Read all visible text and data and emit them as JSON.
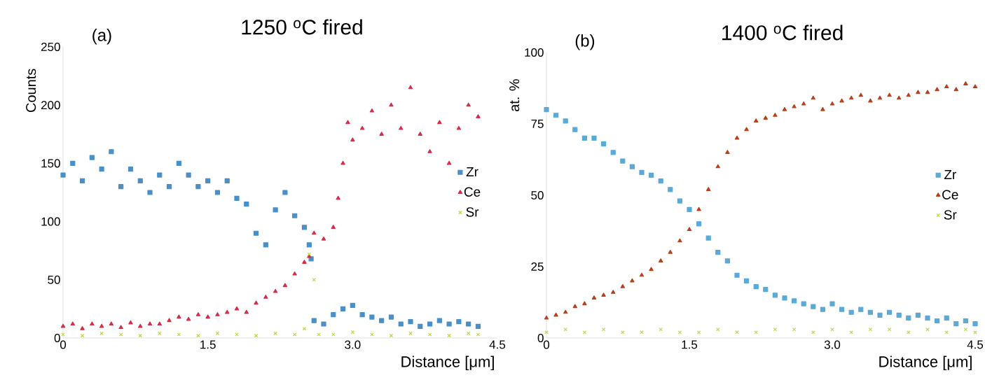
{
  "chart_data": [
    {
      "type": "scatter",
      "title": "1250 $^{o}$C fired",
      "xlabel": "Distance [μm]",
      "ylabel": "Counts",
      "annotations": [
        "(a)"
      ],
      "xlim": [
        0,
        4.5
      ],
      "ylim": [
        0,
        250
      ],
      "xticks": [
        0,
        1.5,
        {
          "value": 3,
          "label": "3.0"
        },
        4.5
      ],
      "yticks": [
        0,
        50,
        100,
        150,
        200,
        250
      ],
      "legend": "right",
      "grid": false,
      "series": [
        {
          "name": "Zr",
          "color": "#4a90c8",
          "marker": "square",
          "x": [
            0,
            0.1,
            0.2,
            0.3,
            0.4,
            0.5,
            0.6,
            0.7,
            0.8,
            0.9,
            1.0,
            1.1,
            1.2,
            1.3,
            1.4,
            1.5,
            1.6,
            1.7,
            1.8,
            1.9,
            2.0,
            2.1,
            2.2,
            2.3,
            2.4,
            2.5,
            2.55,
            2.57,
            2.6,
            2.7,
            2.8,
            2.9,
            3.0,
            3.1,
            3.2,
            3.3,
            3.4,
            3.5,
            3.6,
            3.7,
            3.8,
            3.9,
            4.0,
            4.1,
            4.2,
            4.3
          ],
          "values": [
            140,
            150,
            135,
            155,
            145,
            160,
            130,
            145,
            135,
            125,
            140,
            130,
            150,
            140,
            130,
            135,
            125,
            135,
            120,
            115,
            90,
            80,
            110,
            125,
            105,
            95,
            80,
            68,
            15,
            12,
            20,
            25,
            28,
            20,
            18,
            15,
            18,
            12,
            14,
            10,
            12,
            15,
            12,
            14,
            12,
            10
          ]
        },
        {
          "name": "Ce",
          "color": "#d42e4c",
          "marker": "triangle",
          "x": [
            0,
            0.1,
            0.2,
            0.3,
            0.4,
            0.5,
            0.6,
            0.7,
            0.8,
            0.9,
            1.0,
            1.1,
            1.2,
            1.3,
            1.4,
            1.5,
            1.6,
            1.7,
            1.8,
            1.9,
            2.0,
            2.1,
            2.2,
            2.3,
            2.4,
            2.5,
            2.55,
            2.6,
            2.7,
            2.8,
            2.85,
            2.9,
            2.95,
            3.0,
            3.1,
            3.2,
            3.3,
            3.4,
            3.5,
            3.6,
            3.7,
            3.8,
            3.9,
            4.0,
            4.1,
            4.2,
            4.3
          ],
          "values": [
            10,
            12,
            8,
            12,
            10,
            12,
            9,
            13,
            10,
            12,
            12,
            15,
            18,
            16,
            20,
            18,
            20,
            22,
            25,
            22,
            30,
            35,
            40,
            45,
            55,
            65,
            70,
            90,
            85,
            95,
            120,
            150,
            185,
            170,
            180,
            195,
            175,
            200,
            180,
            215,
            175,
            160,
            185,
            150,
            180,
            200,
            190
          ]
        },
        {
          "name": "Sr",
          "color": "#c2d63a",
          "marker": "cross",
          "x": [
            0,
            0.2,
            0.4,
            0.6,
            0.8,
            1.0,
            1.2,
            1.4,
            1.6,
            1.8,
            2.0,
            2.2,
            2.4,
            2.5,
            2.55,
            2.6,
            2.65,
            2.8,
            3.0,
            3.2,
            3.4,
            3.6,
            3.8,
            4.0,
            4.2,
            4.3
          ],
          "values": [
            3,
            2,
            4,
            3,
            2,
            4,
            3,
            2,
            4,
            3,
            2,
            4,
            3,
            8,
            72,
            50,
            3,
            3,
            5,
            3,
            2,
            4,
            3,
            2,
            4,
            3
          ]
        }
      ]
    },
    {
      "type": "scatter",
      "title": "1400 $^{o}$C fired",
      "xlabel": "Distance [μm]",
      "ylabel": "at. %",
      "annotations": [
        "(b)"
      ],
      "xlim": [
        0,
        4.5
      ],
      "ylim": [
        0,
        100
      ],
      "xticks": [
        0,
        1.5,
        {
          "value": 3,
          "label": "3.0"
        },
        4.5
      ],
      "yticks": [
        0,
        25,
        50,
        75,
        100
      ],
      "legend": "right",
      "grid": false,
      "series": [
        {
          "name": "Zr",
          "color": "#5aaad8",
          "marker": "square",
          "x": [
            0,
            0.1,
            0.2,
            0.3,
            0.4,
            0.5,
            0.6,
            0.7,
            0.8,
            0.9,
            1.0,
            1.1,
            1.2,
            1.3,
            1.4,
            1.5,
            1.6,
            1.7,
            1.8,
            1.9,
            2.0,
            2.1,
            2.2,
            2.3,
            2.4,
            2.5,
            2.6,
            2.7,
            2.8,
            2.9,
            3.0,
            3.1,
            3.2,
            3.3,
            3.4,
            3.5,
            3.6,
            3.7,
            3.8,
            3.9,
            4.0,
            4.1,
            4.2,
            4.3,
            4.4,
            4.5
          ],
          "values": [
            80,
            78,
            76,
            73,
            70,
            70,
            68,
            65,
            62,
            60,
            58,
            57,
            55,
            52,
            48,
            45,
            40,
            35,
            30,
            27,
            22,
            20,
            18,
            17,
            15,
            14,
            13,
            12,
            11,
            10,
            12,
            10,
            9,
            10,
            9,
            8,
            9,
            8,
            7,
            8,
            7,
            6,
            7,
            5,
            6,
            5
          ]
        },
        {
          "name": "Ce",
          "color": "#b8401a",
          "marker": "triangle",
          "x": [
            0,
            0.1,
            0.2,
            0.3,
            0.4,
            0.5,
            0.6,
            0.7,
            0.8,
            0.9,
            1.0,
            1.1,
            1.2,
            1.3,
            1.4,
            1.5,
            1.6,
            1.7,
            1.8,
            1.9,
            2.0,
            2.1,
            2.2,
            2.3,
            2.4,
            2.5,
            2.6,
            2.7,
            2.8,
            2.9,
            3.0,
            3.1,
            3.2,
            3.3,
            3.4,
            3.5,
            3.6,
            3.7,
            3.8,
            3.9,
            4.0,
            4.1,
            4.2,
            4.3,
            4.4,
            4.5
          ],
          "values": [
            7,
            8,
            9,
            11,
            12,
            14,
            15,
            16,
            18,
            20,
            22,
            24,
            27,
            30,
            34,
            38,
            45,
            52,
            60,
            65,
            70,
            73,
            76,
            77,
            78,
            80,
            81,
            82,
            84,
            80,
            82,
            83,
            84,
            85,
            83,
            84,
            85,
            84,
            85,
            86,
            86,
            87,
            88,
            87,
            89,
            88
          ]
        },
        {
          "name": "Sr",
          "color": "#b4dc46",
          "marker": "cross",
          "x": [
            0,
            0.2,
            0.4,
            0.6,
            0.8,
            1.0,
            1.2,
            1.4,
            1.6,
            1.8,
            2.0,
            2.2,
            2.4,
            2.6,
            2.8,
            3.0,
            3.2,
            3.4,
            3.6,
            3.8,
            4.0,
            4.2,
            4.4,
            4.5
          ],
          "values": [
            2,
            3,
            2,
            3,
            2,
            2,
            3,
            2,
            2,
            3,
            2,
            2,
            3,
            3,
            2,
            3,
            2,
            3,
            3,
            2,
            3,
            2,
            3,
            2
          ]
        }
      ]
    }
  ]
}
